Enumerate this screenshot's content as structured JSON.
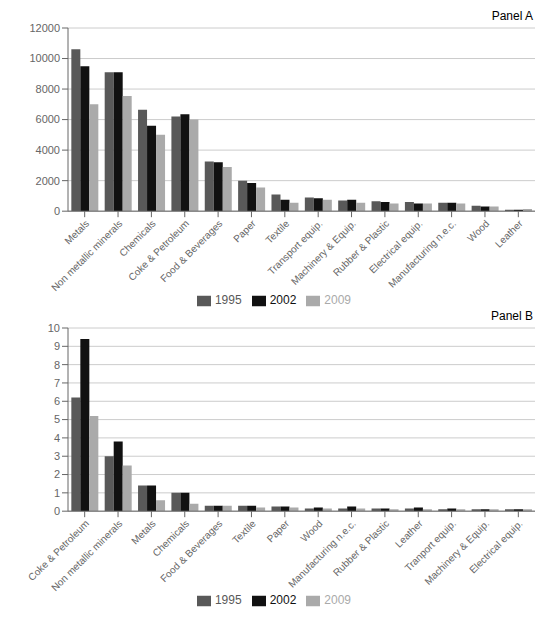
{
  "chart_data": [
    {
      "type": "bar",
      "title": "Panel A",
      "categories": [
        "Metals",
        "Non metallic minerals",
        "Chemicals",
        "Coke & Petroleum",
        "Food & Beverages",
        "Paper",
        "Textile",
        "Transport equip.",
        "Machinery & Equip.",
        "Rubber & Plastic",
        "Electrical equip.",
        "Manufacturing n.e.c.",
        "Wood",
        "Leather"
      ],
      "series": [
        {
          "name": "1995",
          "color": "#595959",
          "values": [
            10600,
            9100,
            6650,
            6200,
            3250,
            2000,
            1100,
            900,
            700,
            650,
            600,
            550,
            350,
            100
          ]
        },
        {
          "name": "2002",
          "color": "#111111",
          "values": [
            9500,
            9100,
            5600,
            6350,
            3200,
            1850,
            750,
            850,
            750,
            600,
            500,
            550,
            300,
            100
          ]
        },
        {
          "name": "2009",
          "color": "#aaaaaa",
          "values": [
            7000,
            7550,
            5000,
            6000,
            2900,
            1550,
            550,
            750,
            550,
            500,
            500,
            500,
            300,
            150
          ]
        }
      ],
      "ylim": [
        0,
        12000
      ],
      "yticks": [
        0,
        2000,
        4000,
        6000,
        8000,
        10000,
        12000
      ],
      "grid": true,
      "legend": "bottom"
    },
    {
      "type": "bar",
      "title": "Panel B",
      "categories": [
        "Coke & Petroleum",
        "Non metallic minerals",
        "Metals",
        "Chemicals",
        "Food & Beverages",
        "Textile",
        "Paper",
        "Wood",
        "Manufacturing n.e.c.",
        "Rubber & Plastic",
        "Leather",
        "Tranport equip.",
        "Machinery & Equip.",
        "Electrical equip."
      ],
      "series": [
        {
          "name": "1995",
          "color": "#595959",
          "values": [
            6.2,
            3.0,
            1.4,
            1.0,
            0.3,
            0.3,
            0.25,
            0.15,
            0.15,
            0.15,
            0.15,
            0.1,
            0.1,
            0.1
          ]
        },
        {
          "name": "2002",
          "color": "#111111",
          "values": [
            9.4,
            3.8,
            1.4,
            1.0,
            0.3,
            0.3,
            0.25,
            0.2,
            0.25,
            0.15,
            0.2,
            0.15,
            0.1,
            0.1
          ]
        },
        {
          "name": "2009",
          "color": "#aaaaaa",
          "values": [
            5.2,
            2.5,
            0.6,
            0.4,
            0.3,
            0.2,
            0.2,
            0.15,
            0.15,
            0.1,
            0.1,
            0.1,
            0.1,
            0.1
          ]
        }
      ],
      "ylim": [
        0,
        10
      ],
      "yticks": [
        0,
        1,
        2,
        3,
        4,
        5,
        6,
        7,
        8,
        9,
        10
      ],
      "grid": true,
      "legend": "bottom"
    }
  ]
}
